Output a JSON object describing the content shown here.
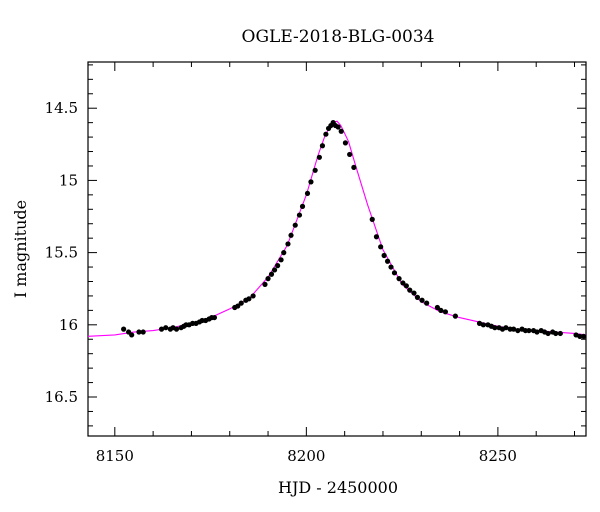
{
  "chart_data": {
    "type": "scatter",
    "title": "OGLE-2018-BLG-0034",
    "xlabel": "HJD - 2450000",
    "ylabel": "I magnitude",
    "xlim": [
      8143,
      8273
    ],
    "ylim": [
      16.77,
      14.18
    ],
    "y_inverted": true,
    "grid": false,
    "x_ticks": [
      8150,
      8200,
      8250
    ],
    "x_tick_labels": [
      "8150",
      "8200",
      "8250"
    ],
    "y_ticks": [
      14.5,
      15,
      15.5,
      16,
      16.5
    ],
    "y_tick_labels": [
      "14.5",
      "15",
      "15.5",
      "16",
      "16.5"
    ],
    "series": [
      {
        "kind": "points",
        "color": "#000000",
        "x": [
          8152.3,
          8153.6,
          8154.4,
          8156.3,
          8157.4,
          8162.2,
          8163.3,
          8164.5,
          8165.2,
          8166.1,
          8167.3,
          8168.0,
          8168.6,
          8169.4,
          8170.3,
          8171.2,
          8172.1,
          8172.8,
          8173.7,
          8174.6,
          8175.3,
          8176.0,
          8181.3,
          8182.1,
          8183.0,
          8184.2,
          8185.0,
          8186.1,
          8189.2,
          8190.0,
          8190.9,
          8191.7,
          8192.5,
          8193.4,
          8194.1,
          8195.2,
          8196.0,
          8197.1,
          8198.2,
          8199.0,
          8200.3,
          8201.2,
          8202.3,
          8203.4,
          8204.2,
          8205.1,
          8205.8,
          8206.4,
          8207.0,
          8207.6,
          8208.3,
          8209.1,
          8210.2,
          8211.3,
          8212.4,
          8217.2,
          8218.3,
          8219.4,
          8220.3,
          8221.2,
          8222.1,
          8223.0,
          8224.2,
          8225.2,
          8226.1,
          8227.0,
          8228.1,
          8229.0,
          8230.2,
          8231.4,
          8234.2,
          8235.1,
          8236.3,
          8238.9,
          8245.2,
          8246.2,
          8247.4,
          8248.3,
          8249.2,
          8250.3,
          8251.2,
          8252.1,
          8253.2,
          8254.1,
          8255.2,
          8256.3,
          8257.2,
          8258.1,
          8259.3,
          8260.2,
          8261.3,
          8262.2,
          8263.1,
          8264.3,
          8265.1,
          8266.3,
          8270.4,
          8271.4,
          8272.4
        ],
        "y": [
          16.03,
          16.05,
          16.07,
          16.05,
          16.05,
          16.03,
          16.02,
          16.03,
          16.02,
          16.03,
          16.02,
          16.01,
          16.0,
          16.0,
          15.99,
          15.99,
          15.98,
          15.97,
          15.97,
          15.96,
          15.95,
          15.95,
          15.88,
          15.87,
          15.85,
          15.83,
          15.82,
          15.8,
          15.72,
          15.68,
          15.65,
          15.62,
          15.59,
          15.55,
          15.5,
          15.44,
          15.38,
          15.31,
          15.24,
          15.18,
          15.09,
          15.01,
          14.93,
          14.84,
          14.76,
          14.68,
          14.64,
          14.62,
          14.6,
          14.62,
          14.63,
          14.66,
          14.74,
          14.82,
          14.91,
          15.27,
          15.39,
          15.46,
          15.52,
          15.56,
          15.6,
          15.64,
          15.68,
          15.71,
          15.73,
          15.76,
          15.78,
          15.81,
          15.83,
          15.85,
          15.88,
          15.9,
          15.91,
          15.94,
          15.99,
          16.0,
          16.0,
          16.01,
          16.02,
          16.02,
          16.03,
          16.02,
          16.03,
          16.03,
          16.04,
          16.03,
          16.04,
          16.04,
          16.04,
          16.05,
          16.04,
          16.05,
          16.06,
          16.05,
          16.06,
          16.06,
          16.07,
          16.08,
          16.08
        ]
      },
      {
        "kind": "model",
        "color": "#ff00ff",
        "x": [
          8143,
          8150,
          8155,
          8160,
          8165,
          8170,
          8175,
          8180,
          8185,
          8190,
          8195,
          8200,
          8203,
          8205,
          8207,
          8208,
          8209,
          8211,
          8213,
          8216,
          8220,
          8225,
          8230,
          8235,
          8240,
          8245,
          8250,
          8255,
          8260,
          8265,
          8270,
          8273
        ],
        "y": [
          16.08,
          16.07,
          16.05,
          16.04,
          16.02,
          15.99,
          15.95,
          15.89,
          15.82,
          15.67,
          15.45,
          15.1,
          14.83,
          14.68,
          14.6,
          14.59,
          14.62,
          14.73,
          14.91,
          15.17,
          15.48,
          15.72,
          15.84,
          15.91,
          15.95,
          15.98,
          16.01,
          16.03,
          16.04,
          16.05,
          16.06,
          16.07
        ]
      }
    ]
  }
}
